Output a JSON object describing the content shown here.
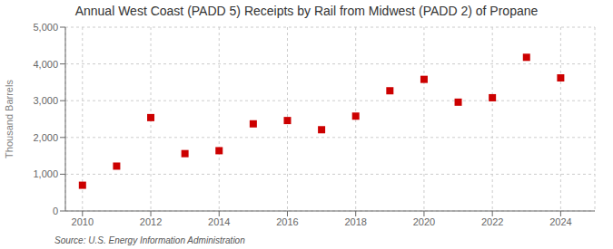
{
  "chart_data": {
    "type": "scatter",
    "title": "Annual West Coast (PADD 5) Receipts by Rail from Midwest (PADD 2) of Propane",
    "ylabel": "Thousand Barrels",
    "annotation": "Source: U.S. Energy Information Administration",
    "x": [
      2010,
      2011,
      2012,
      2013,
      2014,
      2015,
      2016,
      2017,
      2018,
      2019,
      2020,
      2021,
      2022,
      2023,
      2024
    ],
    "values": [
      700,
      1220,
      2540,
      1560,
      1640,
      2370,
      2460,
      2210,
      2580,
      3270,
      3580,
      2960,
      3080,
      4180,
      3620
    ],
    "color": "#cc0000",
    "marker": "square",
    "xlim": [
      2009.5,
      2025.0
    ],
    "xticks": [
      2010,
      2012,
      2014,
      2016,
      2018,
      2020,
      2022,
      2024
    ],
    "ylim": [
      0,
      5000
    ],
    "yticks": [
      0,
      {
        "value": 1000,
        "label": "1,000"
      },
      {
        "value": 2000,
        "label": "2,000"
      },
      {
        "value": 3000,
        "label": "3,000"
      },
      {
        "value": 4000,
        "label": "4,000"
      },
      {
        "value": 5000,
        "label": "5,000"
      }
    ],
    "grid": true
  }
}
